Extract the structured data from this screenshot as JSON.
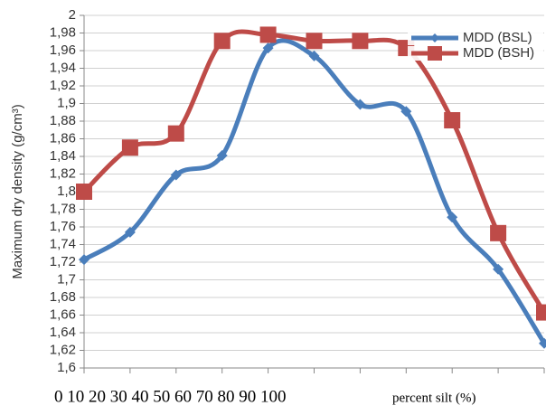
{
  "chart_data": {
    "type": "line",
    "ylabel": "Maximum dry density (g/cm³)",
    "x_numbers_text": "0 10 20 30 40 50 60 70 80 90 100",
    "xlabel": "percent silt (%)",
    "categories": [
      null,
      null,
      null,
      null,
      null,
      null,
      null,
      null,
      null,
      null,
      null
    ],
    "ylim": [
      1.6,
      2
    ],
    "yticks": [
      {
        "value": 1.6,
        "label": "1,6"
      },
      {
        "value": 1.62,
        "label": "1,62"
      },
      {
        "value": 1.64,
        "label": "1,64"
      },
      {
        "value": 1.66,
        "label": "1,66"
      },
      {
        "value": 1.68,
        "label": "1,68"
      },
      {
        "value": 1.7,
        "label": "1,7"
      },
      {
        "value": 1.72,
        "label": "1,72"
      },
      {
        "value": 1.74,
        "label": "1,74"
      },
      {
        "value": 1.76,
        "label": "1,76"
      },
      {
        "value": 1.78,
        "label": "1,78"
      },
      {
        "value": 1.8,
        "label": "1,8"
      },
      {
        "value": 1.82,
        "label": "1,82"
      },
      {
        "value": 1.84,
        "label": "1,84"
      },
      {
        "value": 1.86,
        "label": "1,86"
      },
      {
        "value": 1.88,
        "label": "1,88"
      },
      {
        "value": 1.9,
        "label": "1,9"
      },
      {
        "value": 1.92,
        "label": "1,92"
      },
      {
        "value": 1.94,
        "label": "1,94"
      },
      {
        "value": 1.96,
        "label": "1,96"
      },
      {
        "value": 1.98,
        "label": "1,98"
      },
      2
    ],
    "grid": true,
    "legend": "top-right",
    "series": [
      {
        "name": "MDD (BSL)",
        "color": "#4a7ebb",
        "marker": "diamond",
        "values": [
          1.723,
          1.754,
          1.819,
          1.841,
          1.963,
          1.954,
          1.899,
          1.891,
          1.771,
          1.712,
          1.628
        ]
      },
      {
        "name": "MDD (BSH)",
        "color": "#be4b48",
        "marker": "square",
        "values": [
          1.8,
          1.85,
          1.866,
          1.971,
          1.978,
          1.971,
          1.971,
          1.963,
          1.881,
          1.753,
          1.663
        ]
      }
    ]
  }
}
